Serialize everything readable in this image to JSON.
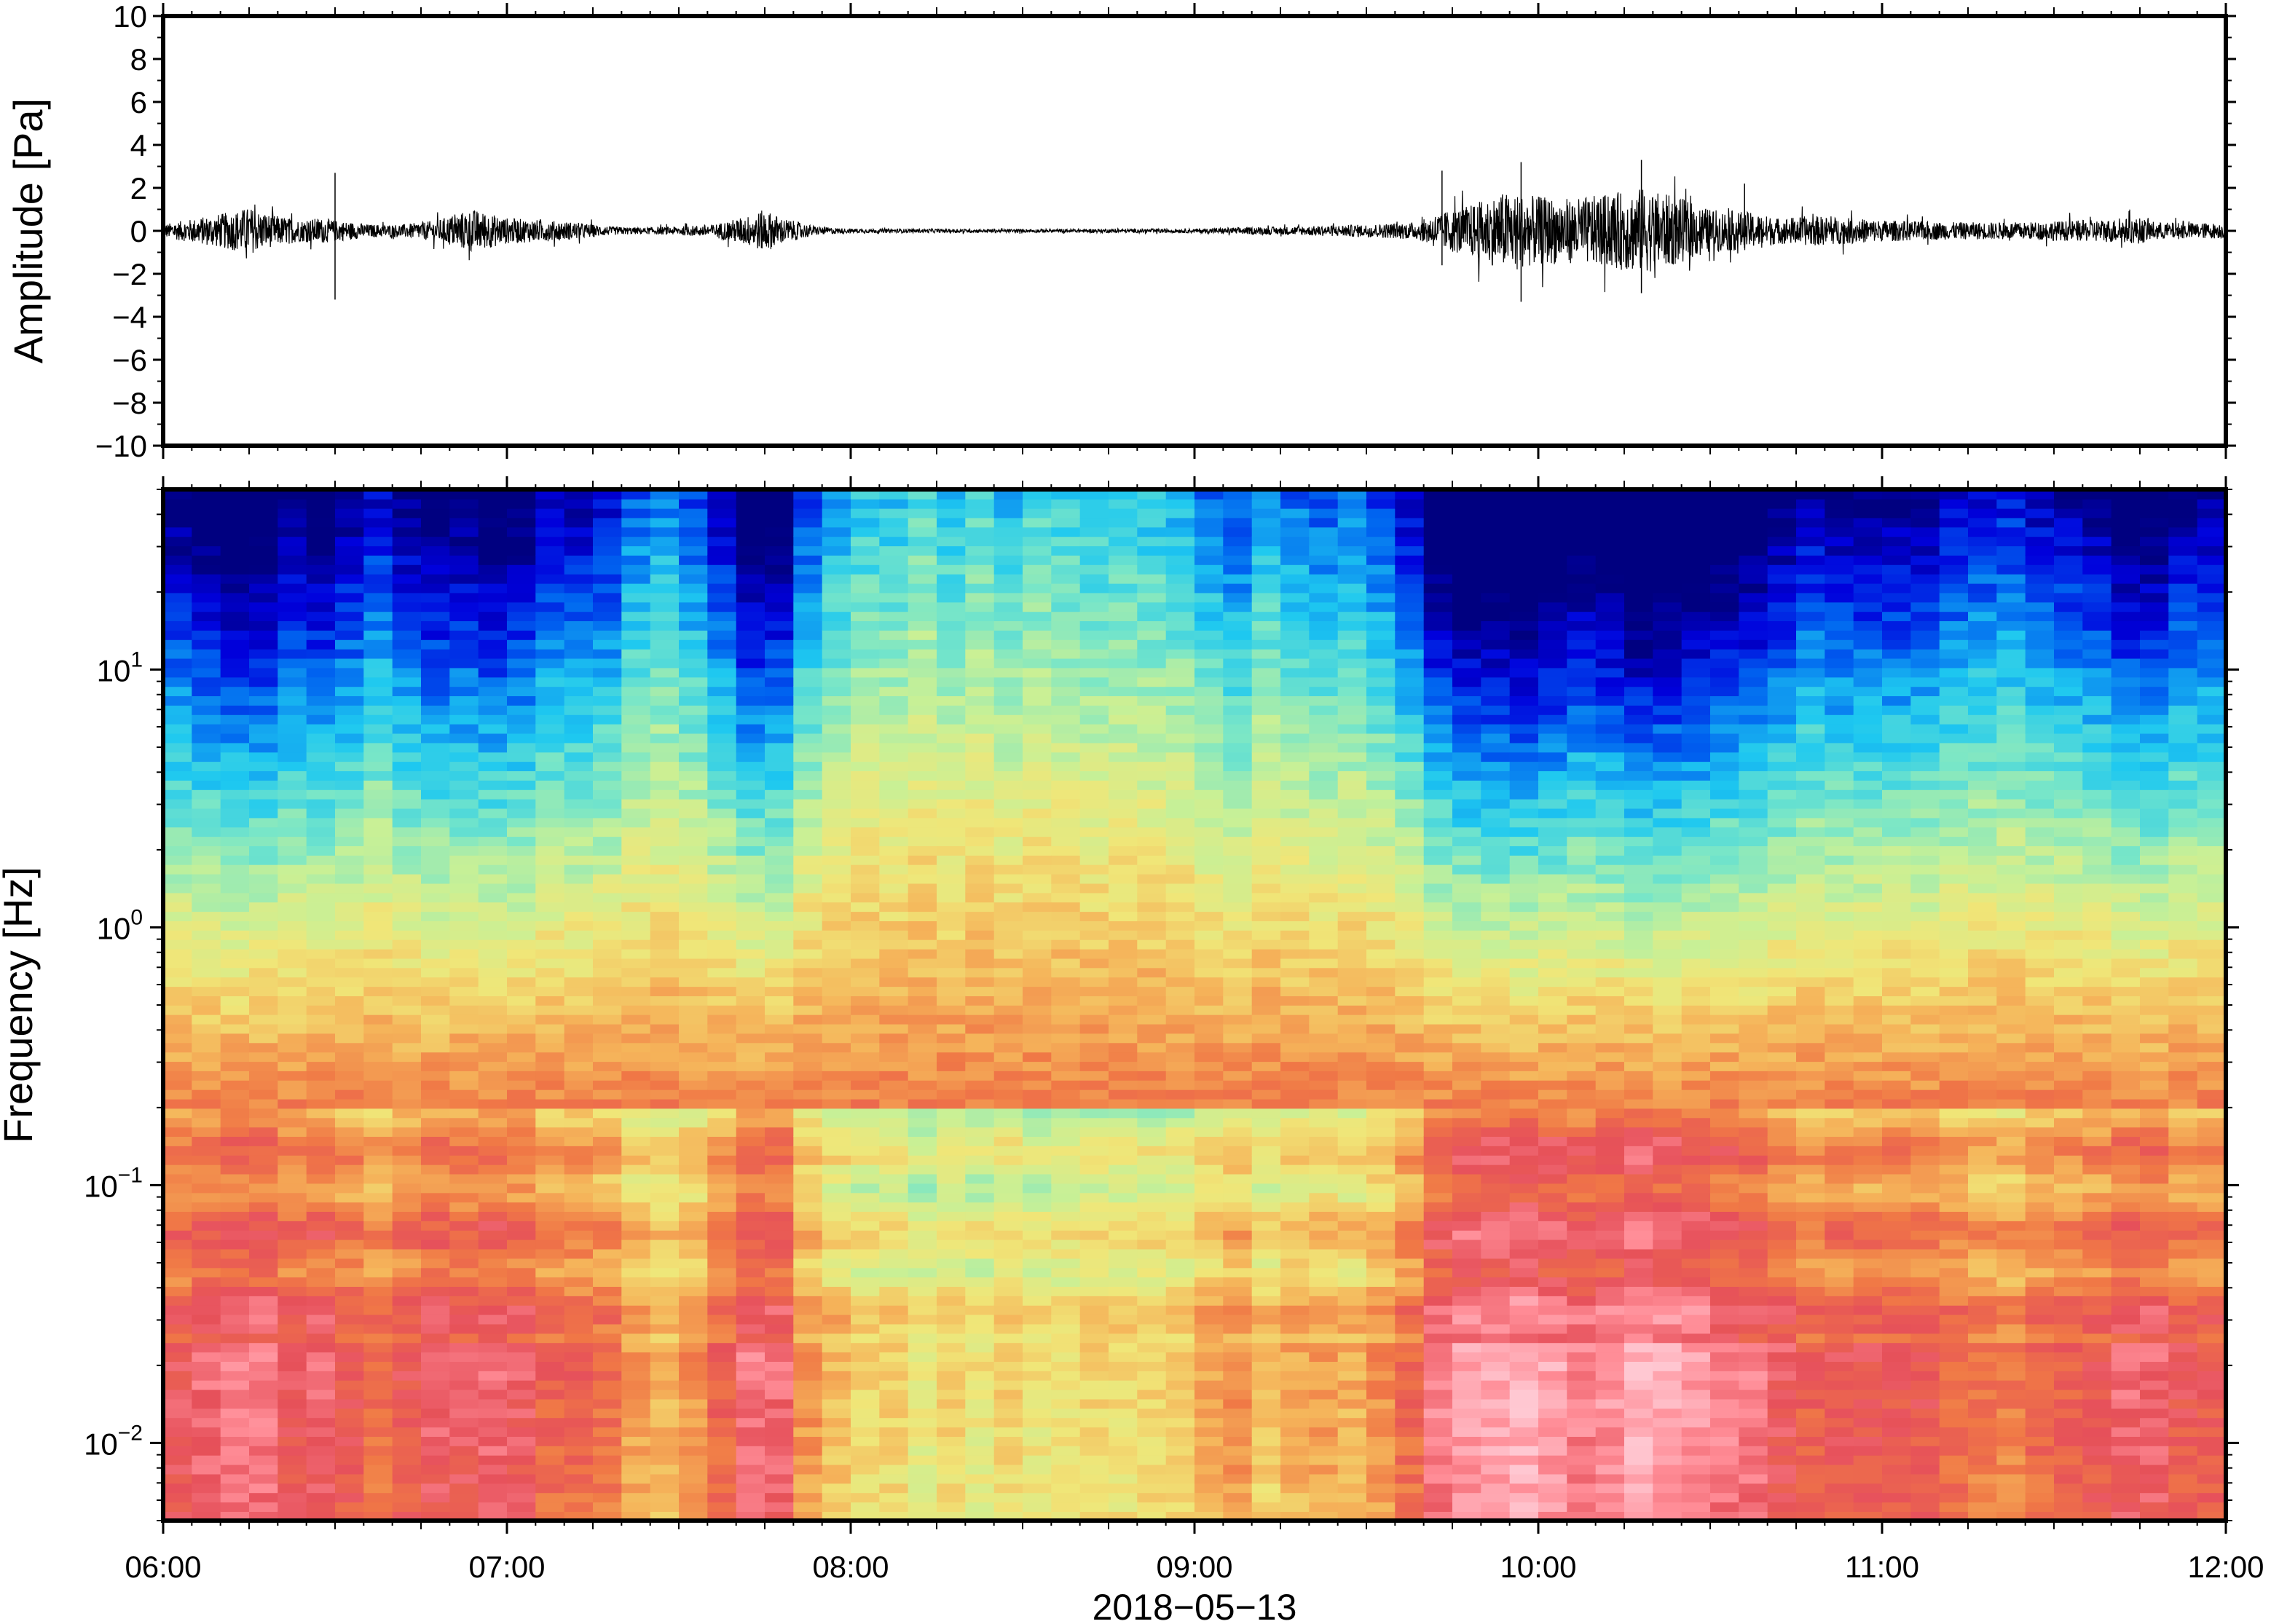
{
  "chart_data": [
    {
      "type": "line",
      "title": "",
      "xlabel": "",
      "ylabel": "Amplitude [Pa]",
      "xlim": [
        "06:00",
        "12:00"
      ],
      "ylim": [
        -10,
        10
      ],
      "yticks": [
        10,
        8,
        6,
        4,
        2,
        0,
        -2,
        -4,
        -6,
        -8,
        -10
      ],
      "ytick_labels": [
        "10",
        "8",
        "6",
        "4",
        "2",
        "0",
        "−2",
        "−4",
        "−6",
        "−8",
        "−10"
      ],
      "grid": false,
      "series": [
        {
          "color": "#000000",
          "envelope": {
            "times_hours": [
              6.0,
              6.1,
              6.2,
              6.25,
              6.3,
              6.4,
              6.45,
              6.5,
              6.55,
              6.6,
              6.7,
              6.8,
              6.85,
              6.9,
              7.0,
              7.1,
              7.2,
              7.3,
              7.4,
              7.5,
              7.6,
              7.7,
              7.75,
              7.8,
              7.9,
              8.0,
              8.5,
              9.0,
              9.1,
              9.3,
              9.5,
              9.65,
              9.7,
              9.8,
              9.9,
              10.0,
              10.1,
              10.2,
              10.3,
              10.4,
              10.5,
              10.6,
              10.7,
              10.8,
              10.9,
              11.0,
              11.2,
              11.4,
              11.6,
              11.75,
              11.8,
              12.0
            ],
            "amplitude_pa": [
              0.3,
              0.6,
              0.9,
              1.1,
              0.8,
              0.5,
              0.6,
              0.5,
              0.4,
              0.3,
              0.3,
              0.5,
              0.8,
              1.0,
              0.6,
              0.5,
              0.4,
              0.2,
              0.15,
              0.2,
              0.3,
              0.7,
              1.0,
              0.6,
              0.2,
              0.1,
              0.08,
              0.1,
              0.15,
              0.2,
              0.3,
              0.4,
              0.8,
              1.2,
              1.8,
              1.6,
              1.5,
              1.7,
              2.0,
              1.6,
              1.0,
              0.9,
              0.6,
              0.7,
              0.6,
              0.5,
              0.4,
              0.4,
              0.5,
              0.6,
              0.4,
              0.35
            ]
          },
          "spikes": [
            {
              "t_hours": 6.5,
              "max": 2.7,
              "min": -3.2
            },
            {
              "t_hours": 9.72,
              "max": 2.8,
              "min": -1.6
            },
            {
              "t_hours": 9.95,
              "max": 3.2,
              "min": -3.3
            },
            {
              "t_hours": 10.3,
              "max": 3.3,
              "min": -2.9
            },
            {
              "t_hours": 10.6,
              "max": 2.2,
              "min": -0.8
            }
          ]
        }
      ]
    },
    {
      "type": "heatmap",
      "title": "",
      "xlabel": "2018−05−13",
      "ylabel": "Frequency [Hz]",
      "xlim": [
        "06:00",
        "12:00"
      ],
      "xtick_labels": [
        "06:00",
        "07:00",
        "08:00",
        "09:00",
        "10:00",
        "11:00",
        "12:00"
      ],
      "ylim": [
        0.005,
        50
      ],
      "yscale": "log",
      "yticks": [
        0.01,
        0.1,
        1,
        10
      ],
      "ytick_labels": [
        {
          "base": "10",
          "exp": "−2"
        },
        {
          "base": "10",
          "exp": "−1"
        },
        {
          "base": "10",
          "exp": "0"
        },
        {
          "base": "10",
          "exp": "1"
        }
      ],
      "colormap": "jet",
      "colors": [
        "#000080",
        "#0000dc",
        "#0064f0",
        "#1ec8f0",
        "#78e6c8",
        "#c8f096",
        "#f0e678",
        "#f5b45a",
        "#f07846",
        "#e6505a",
        "#ff8c96",
        "#ffc8d2"
      ],
      "profile_hours": [
        6.0,
        6.15,
        6.3,
        6.45,
        6.5,
        6.6,
        6.8,
        6.9,
        7.0,
        7.15,
        7.3,
        7.45,
        7.6,
        7.7,
        7.8,
        7.9,
        8.0,
        8.2,
        8.5,
        8.8,
        9.0,
        9.1,
        9.2,
        9.4,
        9.6,
        9.7,
        9.8,
        9.9,
        10.0,
        10.1,
        10.2,
        10.3,
        10.4,
        10.5,
        10.6,
        10.8,
        11.0,
        11.2,
        11.4,
        11.6,
        11.75,
        11.9,
        12.0
      ],
      "activity": [
        0.6,
        0.8,
        0.8,
        0.7,
        0.75,
        0.55,
        0.7,
        0.8,
        0.7,
        0.6,
        0.5,
        0.35,
        0.45,
        0.8,
        0.7,
        0.4,
        0.2,
        0.15,
        0.18,
        0.2,
        0.25,
        0.45,
        0.3,
        0.35,
        0.45,
        0.85,
        0.95,
        1.0,
        0.95,
        0.9,
        0.9,
        1.0,
        1.0,
        0.85,
        0.8,
        0.65,
        0.65,
        0.6,
        0.55,
        0.65,
        0.8,
        0.7,
        0.55
      ]
    }
  ]
}
